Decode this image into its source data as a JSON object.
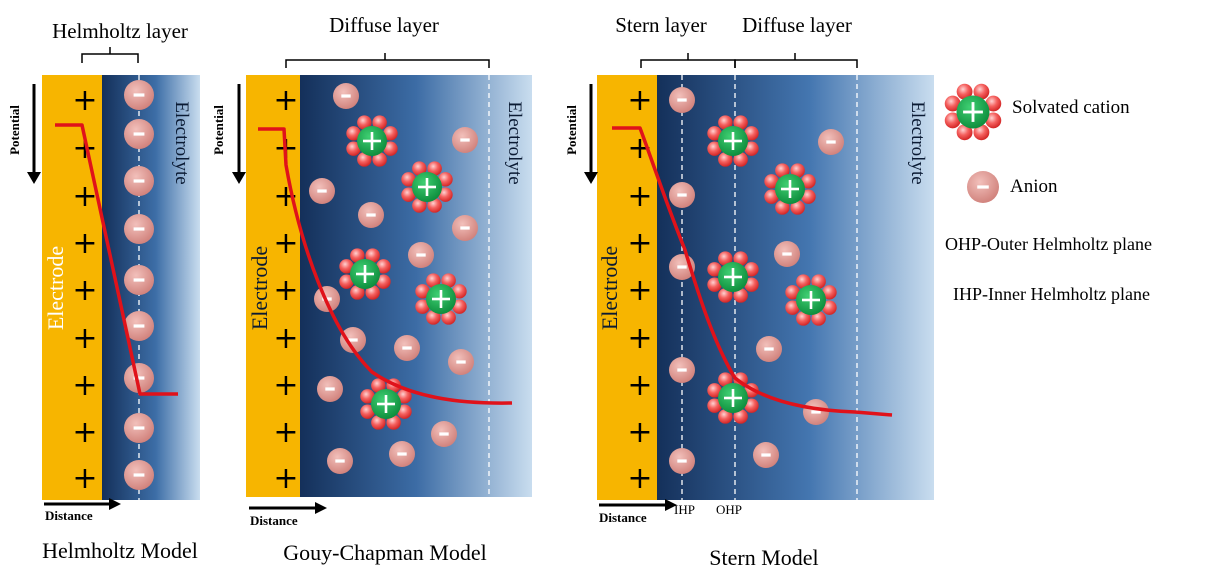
{
  "panels": {
    "helmholtz": {
      "bracket_label": "Helmholtz layer",
      "electrode_label": "Electrode",
      "electrolyte_label": "Electrolyte",
      "potential_label": "Potential",
      "distance_label": "Distance",
      "caption": "Helmholtz Model"
    },
    "gouy": {
      "bracket_label": "Diffuse layer",
      "electrode_label": "Electrode",
      "electrolyte_label": "Electrolyte",
      "potential_label": "Potential",
      "distance_label": "Distance",
      "caption": "Gouy-Chapman Model"
    },
    "stern": {
      "bracket_label_stern": "Stern layer",
      "bracket_label_diffuse": "Diffuse layer",
      "electrode_label": "Electrolyte",
      "electrode_text": "Electrode",
      "potential_label": "Potential",
      "distance_label": "Distance",
      "ihp_label": "IHP",
      "ohp_label": "OHP",
      "caption": "Stern Model"
    }
  },
  "legend": {
    "solvated_cation": "Solvated cation",
    "anion": "Anion",
    "ohp": "OHP-Outer Helmholtz plane",
    "ihp": "IHP-Inner Helmholtz plane"
  },
  "symbols": {
    "plus": "+",
    "minus": "-"
  },
  "colors": {
    "electrode": "#f7b500",
    "electrolyte_dark": "#1b3a63",
    "electrolyte_light": "#c5daee",
    "potential_curve": "#e0121a",
    "anion": "#d9908a",
    "cation_core": "#12a04a",
    "solvent": "#f04a4a"
  }
}
